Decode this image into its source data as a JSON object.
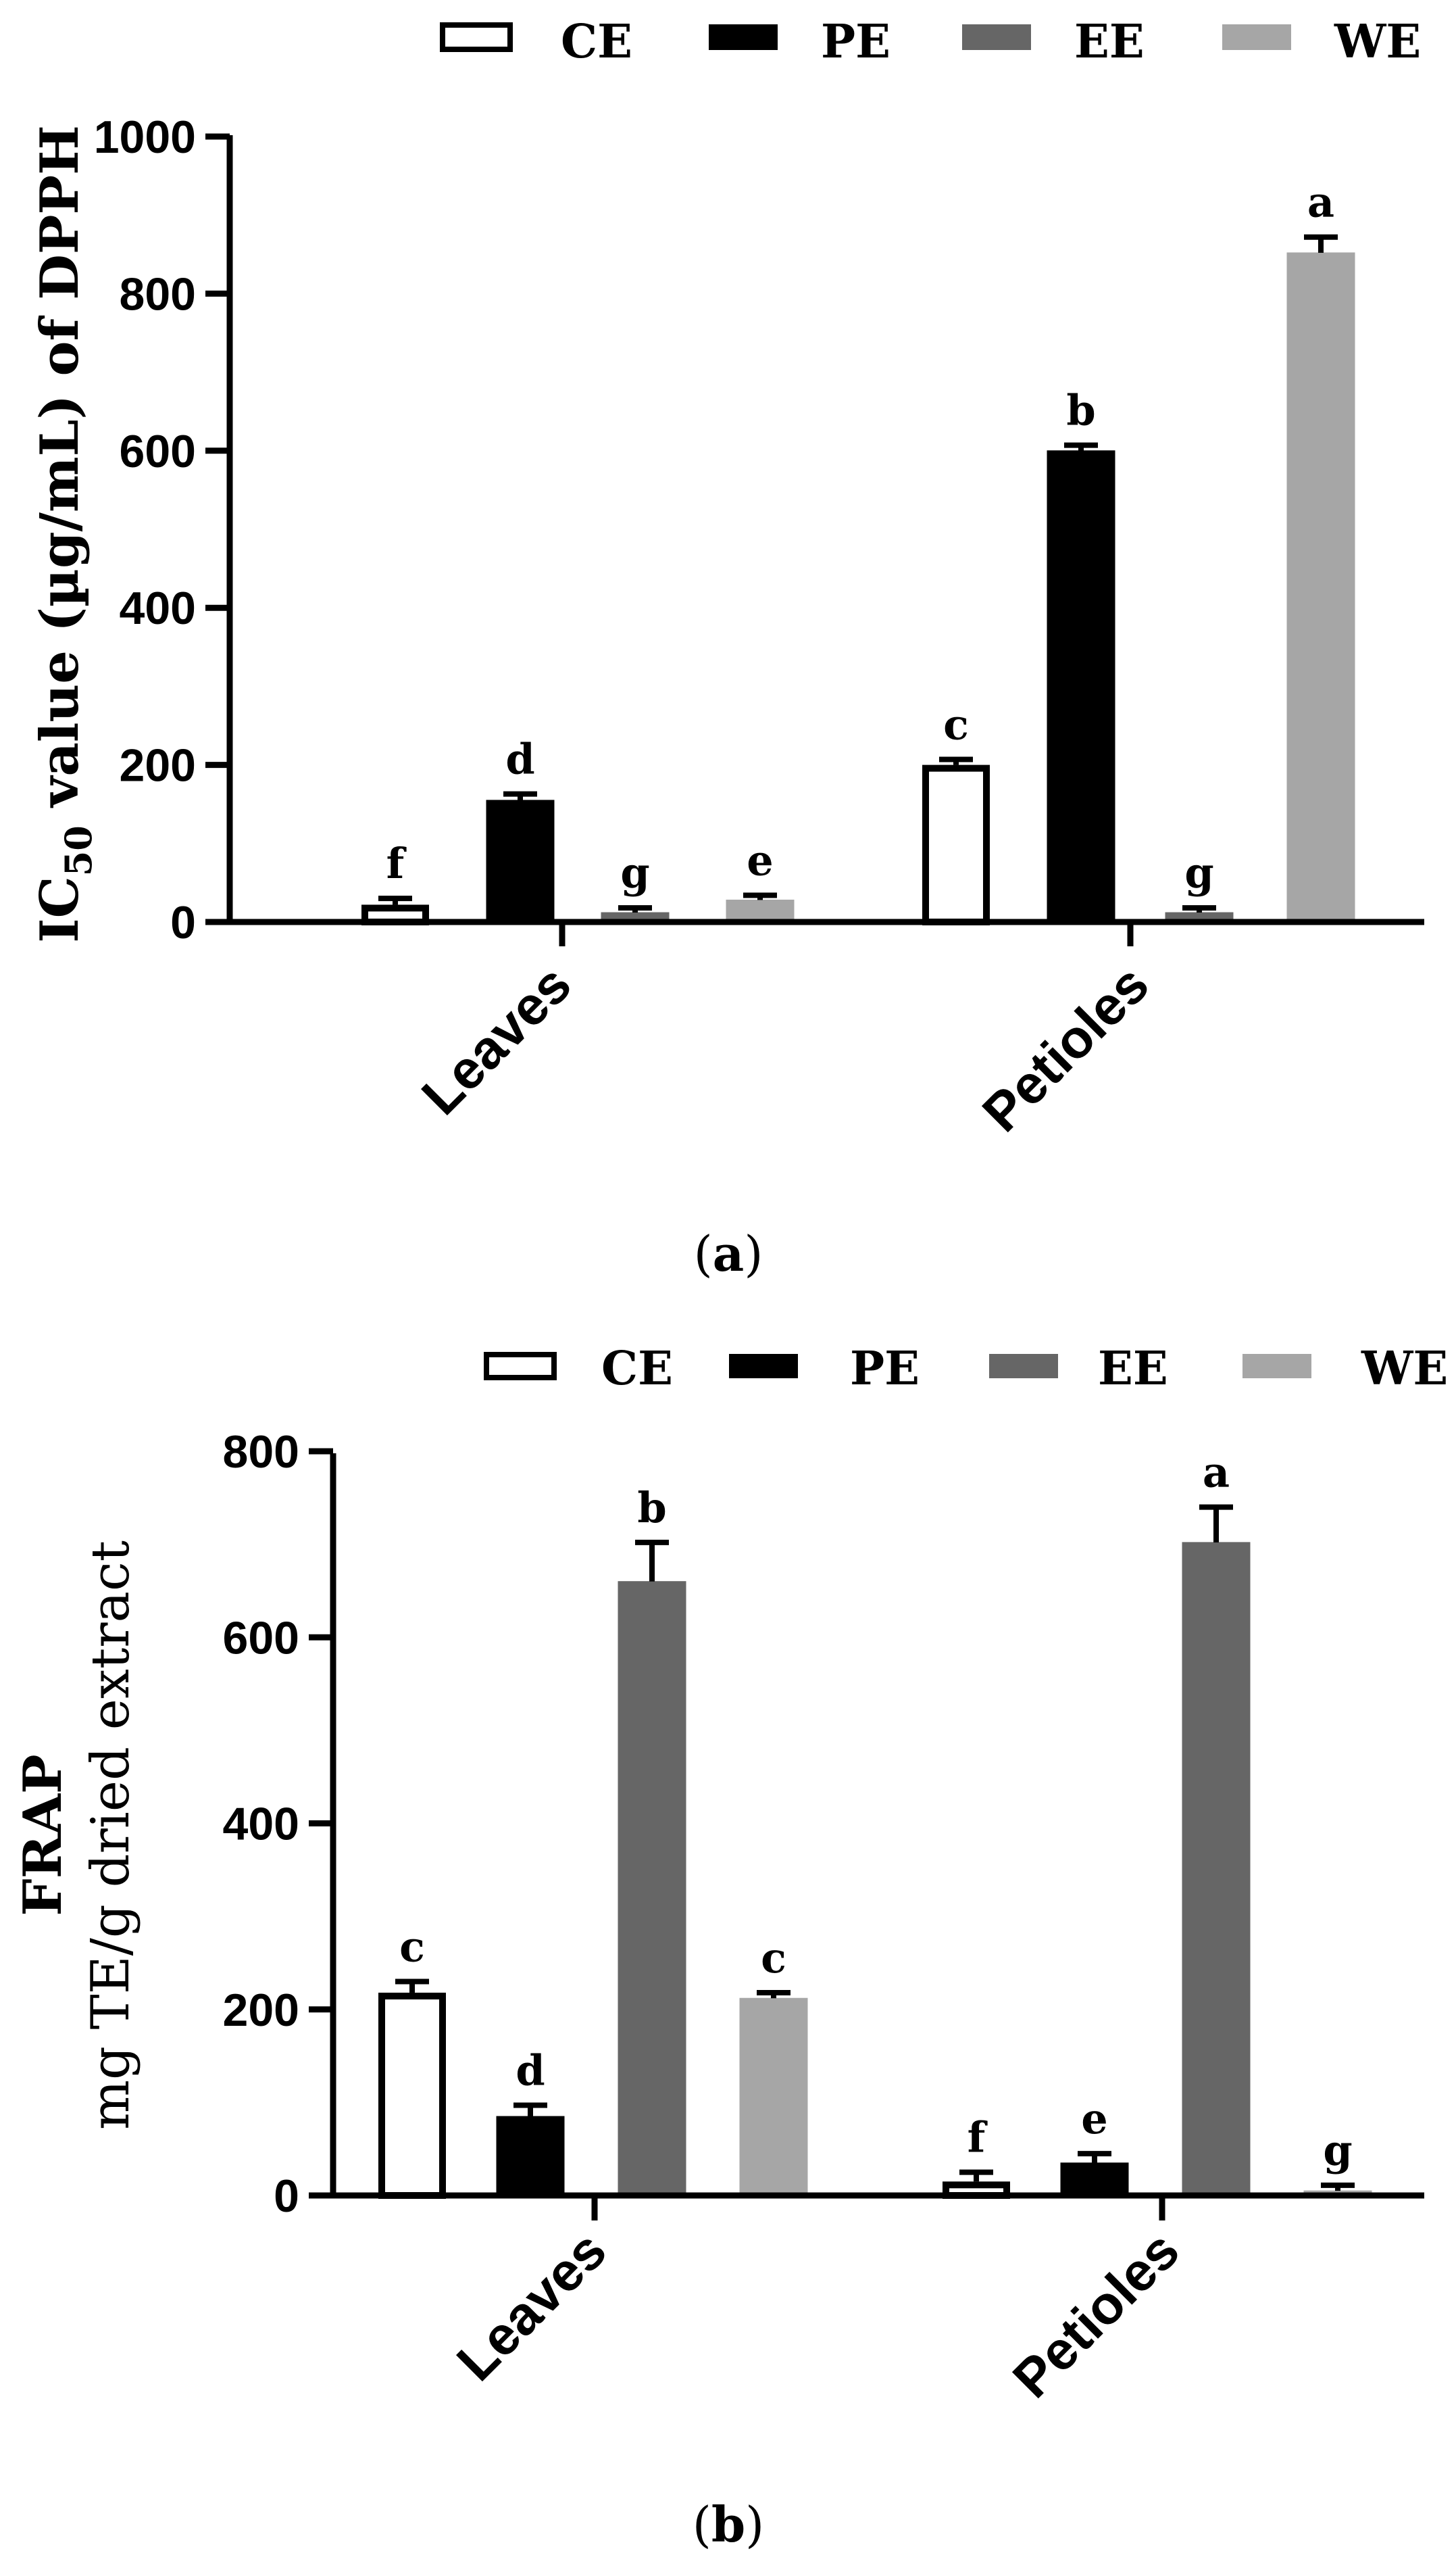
{
  "chart_data": [
    {
      "type": "bar",
      "panel": "a",
      "caption": {
        "open": "(",
        "letter": "a",
        "close": ")"
      },
      "categories": [
        "Leaves",
        "Petioles"
      ],
      "legend": [
        {
          "name": "CE",
          "color": "#ffffff",
          "stroke": "#000000"
        },
        {
          "name": "PE",
          "color": "#000000",
          "stroke": "#000000"
        },
        {
          "name": "EE",
          "color": "#666666",
          "stroke": "#666666"
        },
        {
          "name": "WE",
          "color": "#a6a6a6",
          "stroke": "#a6a6a6"
        }
      ],
      "series": [
        {
          "name": "CE",
          "values": [
            22,
            200
          ],
          "errors": [
            8,
            7
          ],
          "labels": [
            "f",
            "c"
          ]
        },
        {
          "name": "PE",
          "values": [
            155,
            600
          ],
          "errors": [
            8,
            7
          ],
          "labels": [
            "d",
            "b"
          ]
        },
        {
          "name": "EE",
          "values": [
            12,
            12
          ],
          "errors": [
            6,
            6
          ],
          "labels": [
            "g",
            "g"
          ]
        },
        {
          "name": "WE",
          "values": [
            28,
            852
          ],
          "errors": [
            6,
            20
          ],
          "labels": [
            "e",
            "a"
          ]
        }
      ],
      "ylabel_parts": {
        "pre": "IC",
        "sub": "50",
        "post": " value (µg/mL) of DPPH"
      },
      "ylim": [
        0,
        1000
      ],
      "yticks": [
        "0",
        "200",
        "400",
        "600",
        "800",
        "1000"
      ]
    },
    {
      "type": "bar",
      "panel": "b",
      "caption": {
        "open": "(",
        "letter": "b",
        "close": ")"
      },
      "categories": [
        "Leaves",
        "Petioles"
      ],
      "legend": [
        {
          "name": "CE",
          "color": "#ffffff",
          "stroke": "#000000"
        },
        {
          "name": "PE",
          "color": "#000000",
          "stroke": "#000000"
        },
        {
          "name": "EE",
          "color": "#666666",
          "stroke": "#666666"
        },
        {
          "name": "WE",
          "color": "#a6a6a6",
          "stroke": "#a6a6a6"
        }
      ],
      "series": [
        {
          "name": "CE",
          "values": [
            218,
            15
          ],
          "errors": [
            12,
            10
          ],
          "labels": [
            "c",
            "f"
          ]
        },
        {
          "name": "PE",
          "values": [
            85,
            35
          ],
          "errors": [
            12,
            10
          ],
          "labels": [
            "d",
            "e"
          ]
        },
        {
          "name": "EE",
          "values": [
            660,
            702
          ],
          "errors": [
            42,
            38
          ],
          "labels": [
            "b",
            "a"
          ]
        },
        {
          "name": "WE",
          "values": [
            212,
            5
          ],
          "errors": [
            6,
            6
          ],
          "labels": [
            "c",
            "g"
          ]
        }
      ],
      "ylabel_lines": [
        "FRAP",
        "mg TE/g dried extract"
      ],
      "ylim": [
        0,
        800
      ],
      "yticks": [
        "0",
        "200",
        "400",
        "600",
        "800"
      ]
    }
  ]
}
